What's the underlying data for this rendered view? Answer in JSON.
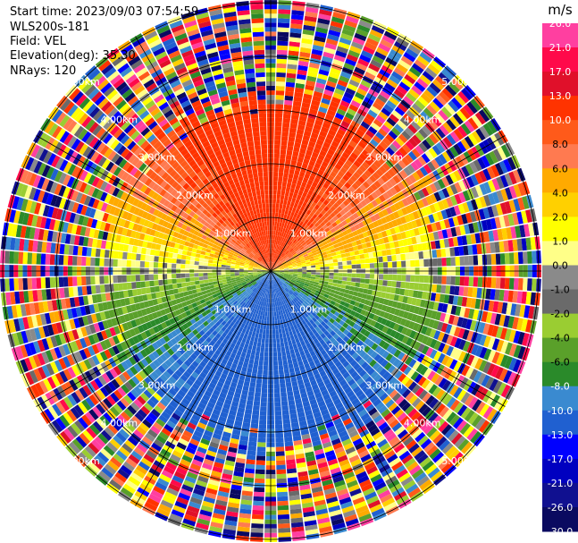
{
  "header": {
    "start_time": "Start time: 2023/09/03 07:54:59",
    "instrument": "WLS200s-181",
    "field": "Field: VEL",
    "elevation": "Elevation(deg): 35.30",
    "nrays": "NRays: 120"
  },
  "colorbar": {
    "unit": "m/s",
    "ticks": [
      "26.0",
      "21.0",
      "17.0",
      "13.0",
      "10.0",
      "8.0",
      "6.0",
      "4.0",
      "2.0",
      "1.0",
      "0.0",
      "-1.0",
      "-2.0",
      "-4.0",
      "-6.0",
      "-8.0",
      "-10.0",
      "-13.0",
      "-17.0",
      "-21.0",
      "-26.0",
      "-30.0"
    ],
    "colors": [
      "#ff3fa0",
      "#ff0a4a",
      "#e0102a",
      "#ff3300",
      "#ff5a1a",
      "#ff7a50",
      "#ffaa00",
      "#ffd000",
      "#ffff00",
      "#ffff88",
      "#8a8a8a",
      "#6a6a6a",
      "#9acd32",
      "#5aa02a",
      "#2a8a2a",
      "#3a8ad0",
      "#2060d0",
      "#0000ff",
      "#0000c0",
      "#101090",
      "#0a0a60"
    ]
  },
  "chart_data": {
    "type": "heatmap",
    "description_kind": "PPI scan",
    "range_rings_km": [
      "1.00km",
      "2.00km",
      "3.00km",
      "4.00km",
      "5.00km"
    ],
    "nrays": 120,
    "elevation_deg": 35.3,
    "value_range": [
      -30.0,
      26.0
    ],
    "unit": "m/s"
  }
}
